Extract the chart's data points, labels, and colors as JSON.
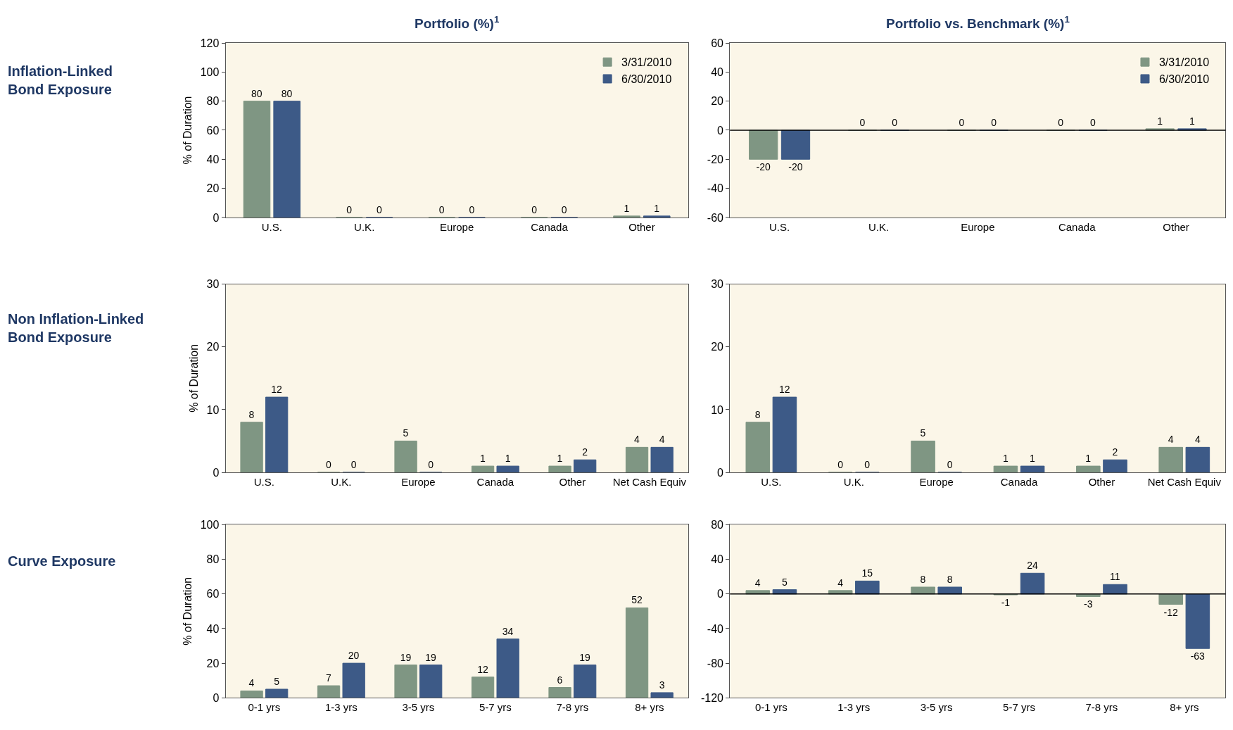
{
  "chart_data": [
    {
      "type": "bar",
      "title": "Portfolio (%)$^{1}$",
      "ylabel": "% of Duration",
      "annotations": [
        "Inflation-Linked\nBond Exposure"
      ],
      "categories": [
        "U.S.",
        "U.K.",
        "Europe",
        "Canada",
        "Other"
      ],
      "series": [
        {
          "name": "3/31/2010",
          "color": "#7f9683",
          "values": [
            80,
            0,
            0,
            0,
            1
          ]
        },
        {
          "name": "6/30/2010",
          "color": "#3d5a87",
          "values": [
            80,
            0,
            0,
            0,
            1
          ]
        }
      ],
      "ylim": [
        0,
        120
      ],
      "yticks": [
        0,
        20,
        40,
        60,
        80,
        100,
        120
      ],
      "data_labels": true,
      "legend": "top right",
      "grid": false
    },
    {
      "type": "bar",
      "title": "Portfolio vs. Benchmark (%)$^{1}$",
      "categories": [
        "U.S.",
        "U.K.",
        "Europe",
        "Canada",
        "Other"
      ],
      "series": [
        {
          "name": "3/31/2010",
          "color": "#7f9683",
          "values": [
            -20,
            0,
            0,
            0,
            1
          ]
        },
        {
          "name": "6/30/2010",
          "color": "#3d5a87",
          "values": [
            -20,
            0,
            0,
            0,
            1
          ]
        }
      ],
      "ylim": [
        -60,
        60
      ],
      "yticks": [
        -60,
        -40,
        -20,
        0,
        20,
        40,
        60
      ],
      "ref_lines": [
        {
          "axis": "y",
          "value": 0,
          "color": "#000000"
        }
      ],
      "data_labels": true,
      "legend": "top right",
      "grid": false
    },
    {
      "type": "bar",
      "ylabel": "% of Duration",
      "annotations": [
        "Non Inflation-Linked\nBond Exposure"
      ],
      "categories": [
        "U.S.",
        "U.K.",
        "Europe",
        "Canada",
        "Other",
        "Net Cash Equiv"
      ],
      "series": [
        {
          "color": "#7f9683",
          "values": [
            8,
            0,
            5,
            1,
            1,
            4
          ]
        },
        {
          "color": "#3d5a87",
          "values": [
            12,
            0,
            0,
            1,
            2,
            4
          ]
        }
      ],
      "ylim": [
        0,
        30
      ],
      "yticks": [
        0,
        10,
        20,
        30
      ],
      "data_labels": true,
      "grid": false
    },
    {
      "type": "bar",
      "categories": [
        "U.S.",
        "U.K.",
        "Europe",
        "Canada",
        "Other",
        "Net Cash Equiv"
      ],
      "series": [
        {
          "color": "#7f9683",
          "values": [
            8,
            0,
            5,
            1,
            1,
            4
          ]
        },
        {
          "color": "#3d5a87",
          "values": [
            12,
            0,
            0,
            1,
            2,
            4
          ]
        }
      ],
      "ylim": [
        0,
        30
      ],
      "yticks": [
        0,
        10,
        20,
        30
      ],
      "data_labels": true,
      "grid": false
    },
    {
      "type": "bar",
      "ylabel": "% of Duration",
      "annotations": [
        "Curve Exposure"
      ],
      "categories": [
        "0-1 yrs",
        "1-3 yrs",
        "3-5 yrs",
        "5-7 yrs",
        "7-8 yrs",
        "8+ yrs"
      ],
      "series": [
        {
          "color": "#7f9683",
          "values": [
            4,
            7,
            19,
            12,
            6,
            52
          ]
        },
        {
          "color": "#3d5a87",
          "values": [
            5,
            20,
            19,
            34,
            19,
            3
          ]
        }
      ],
      "ylim": [
        0,
        100
      ],
      "yticks": [
        0,
        20,
        40,
        60,
        80,
        100
      ],
      "data_labels": true,
      "grid": false
    },
    {
      "type": "bar",
      "categories": [
        "0-1 yrs",
        "1-3 yrs",
        "3-5 yrs",
        "5-7 yrs",
        "7-8 yrs",
        "8+ yrs"
      ],
      "series": [
        {
          "color": "#7f9683",
          "values": [
            4,
            4,
            8,
            -1,
            -3,
            -12
          ]
        },
        {
          "color": "#3d5a87",
          "values": [
            5,
            15,
            8,
            24,
            11,
            -63
          ]
        }
      ],
      "ylim": [
        -120,
        80
      ],
      "ref_lines": [
        {
          "axis": "y",
          "value": 0,
          "color": "#000000"
        }
      ],
      "yticks": [
        -120,
        -80,
        -40,
        0,
        40,
        80
      ],
      "data_labels": true,
      "grid": false
    }
  ]
}
